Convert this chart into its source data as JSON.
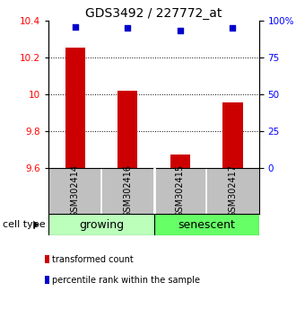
{
  "title": "GDS3492 / 227772_at",
  "samples": [
    "GSM302414",
    "GSM302416",
    "GSM302415",
    "GSM302417"
  ],
  "bar_values": [
    10.255,
    10.02,
    9.67,
    9.955
  ],
  "percentile_values": [
    96,
    95,
    93,
    95
  ],
  "bar_color": "#cc0000",
  "percentile_color": "#0000cc",
  "ylim_left": [
    9.6,
    10.4
  ],
  "ylim_right": [
    0,
    100
  ],
  "yticks_left": [
    9.6,
    9.8,
    10.0,
    10.2,
    10.4
  ],
  "yticks_right": [
    0,
    25,
    50,
    75,
    100
  ],
  "ytick_labels_left": [
    "9.6",
    "9.8",
    "10",
    "10.2",
    "10.4"
  ],
  "ytick_labels_right": [
    "0",
    "25",
    "50",
    "75",
    "100%"
  ],
  "grid_lines": [
    9.8,
    10.0,
    10.2
  ],
  "groups": [
    {
      "label": "growing",
      "indices": [
        0,
        1
      ],
      "color": "#bbffbb"
    },
    {
      "label": "senescent",
      "indices": [
        2,
        3
      ],
      "color": "#66ff66"
    }
  ],
  "cell_type_label": "cell type",
  "legend_bar_label": "transformed count",
  "legend_percentile_label": "percentile rank within the sample",
  "background_plot": "#ffffff",
  "background_sample_box": "#c0c0c0",
  "title_fontsize": 10,
  "tick_fontsize": 7.5,
  "sample_fontsize": 7,
  "group_fontsize": 9,
  "legend_fontsize": 7
}
